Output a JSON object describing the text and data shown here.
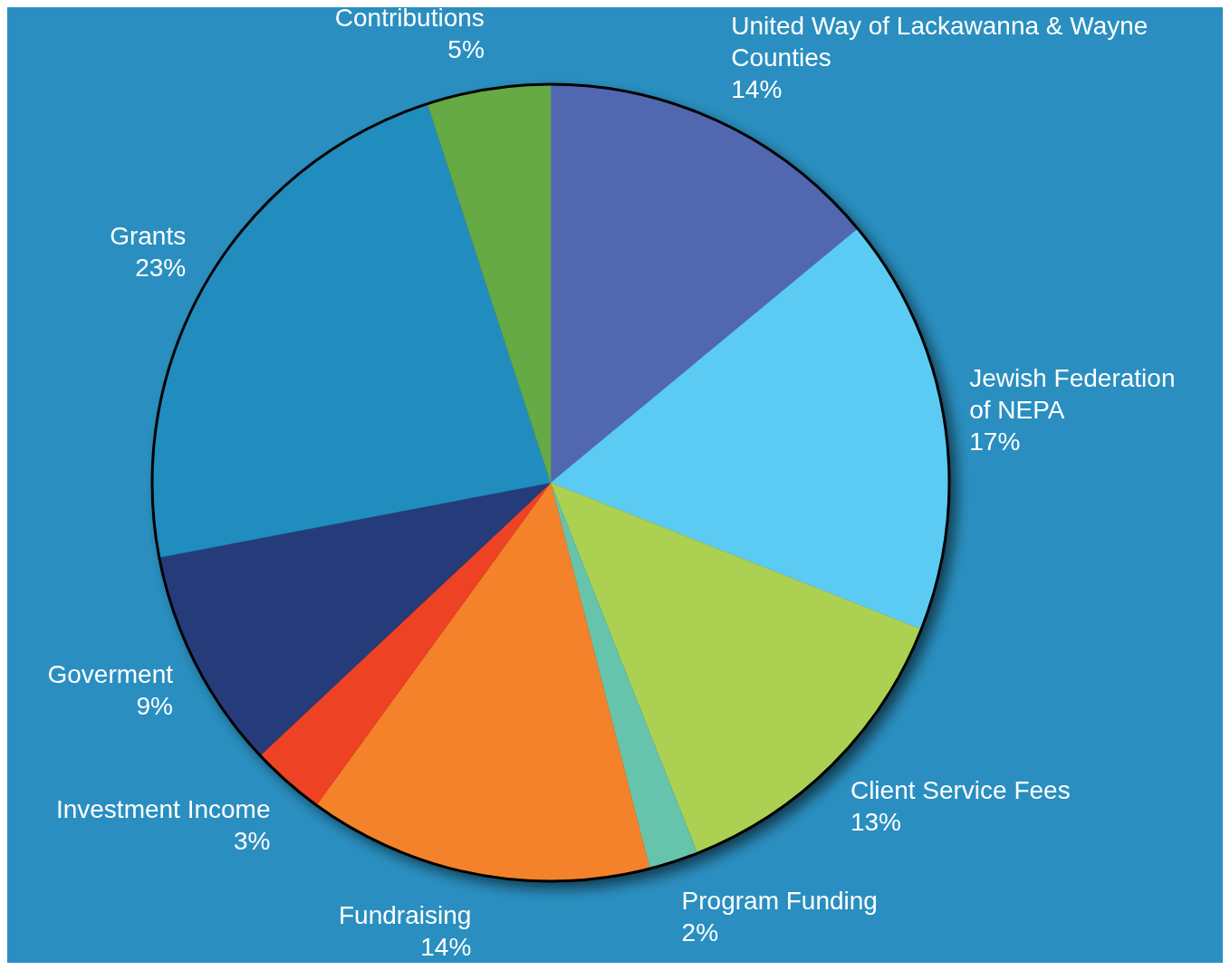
{
  "chart_data": {
    "type": "pie",
    "categories": [
      "United Way of Lackawanna & Wayne Counties",
      "Jewish Federation of NEPA",
      "Client Service Fees",
      "Program Funding",
      "Fundraising",
      "Investment Income",
      "Goverment",
      "Grants",
      "Contributions"
    ],
    "values": [
      14,
      17,
      13,
      2,
      14,
      3,
      9,
      23,
      5
    ],
    "colors": [
      "#5167b0",
      "#5bcbf3",
      "#acd152",
      "#66c4ac",
      "#f4822a",
      "#ee4224",
      "#263b7a",
      "#218cbe",
      "#66aa46"
    ],
    "value_labels": [
      "14%",
      "17%",
      "13%",
      "2%",
      "14%",
      "3%",
      "9%",
      "23%",
      "5%"
    ]
  }
}
